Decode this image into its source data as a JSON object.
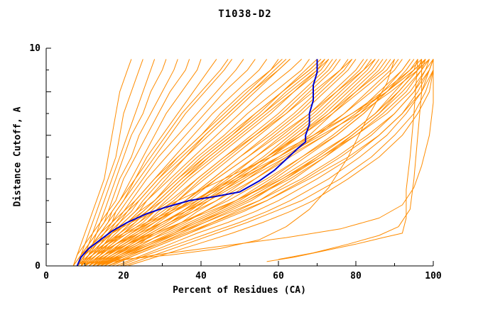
{
  "chart_data": {
    "type": "line",
    "title": "T1038-D2",
    "xlabel": "Percent of Residues (CA)",
    "ylabel": "Distance Cutoff, A",
    "xlim": [
      0,
      100
    ],
    "ylim": [
      0,
      10
    ],
    "grid": false,
    "legend": "none",
    "colors": {
      "background": "#ffffff",
      "axis": "#000000",
      "text": "#000000",
      "model_line": "#ff8c00",
      "highlight_line": "#0000cd"
    },
    "x_major_ticks": [
      0,
      20,
      40,
      60,
      80,
      100
    ],
    "x_tick_labels": [
      "0",
      "20",
      "40",
      "60",
      "80",
      "100"
    ],
    "x_minor_ticks": [
      10,
      30,
      50,
      70,
      90
    ],
    "y_major_ticks": [
      0,
      2,
      4,
      6,
      8,
      10
    ],
    "y_minor_ticks": [
      1,
      3,
      5,
      7,
      9
    ],
    "y_labeled_ticks": [
      {
        "value": 0,
        "label": "0"
      },
      {
        "value": 10,
        "label": "10"
      }
    ],
    "y_levels": [
      0,
      0.5,
      1,
      1.5,
      2,
      2.5,
      3,
      4,
      5,
      6,
      7,
      8,
      9,
      9.5
    ],
    "model_series_x": [
      [
        7,
        8,
        9,
        10,
        11,
        12,
        13,
        15,
        16,
        17,
        18,
        19,
        21,
        22
      ],
      [
        7,
        8,
        10,
        11,
        12,
        13,
        14,
        16,
        18,
        19,
        20,
        22,
        24,
        25
      ],
      [
        8,
        9,
        10,
        12,
        13,
        14,
        15,
        17,
        19,
        21,
        23,
        25,
        27,
        28
      ],
      [
        8,
        9,
        11,
        12,
        14,
        15,
        16,
        18,
        20,
        22,
        25,
        27,
        30,
        31
      ],
      [
        8,
        10,
        11,
        13,
        14,
        16,
        17,
        19,
        22,
        24,
        27,
        30,
        33,
        34
      ],
      [
        9,
        10,
        12,
        13,
        15,
        16,
        18,
        20,
        23,
        26,
        29,
        32,
        36,
        37
      ],
      [
        9,
        11,
        12,
        14,
        16,
        17,
        19,
        22,
        25,
        28,
        31,
        35,
        39,
        40
      ],
      [
        9,
        11,
        13,
        15,
        17,
        18,
        20,
        23,
        26,
        30,
        34,
        38,
        42,
        44
      ],
      [
        8,
        10,
        12,
        14,
        16,
        18,
        20,
        24,
        28,
        32,
        36,
        41,
        46,
        48
      ],
      [
        8,
        10,
        13,
        15,
        17,
        19,
        21,
        25,
        29,
        34,
        39,
        44,
        49,
        51
      ],
      [
        9,
        11,
        13,
        16,
        18,
        20,
        22,
        26,
        31,
        36,
        41,
        46,
        52,
        54
      ],
      [
        9,
        11,
        14,
        16,
        19,
        21,
        23,
        28,
        33,
        38,
        43,
        49,
        55,
        57
      ],
      [
        9,
        12,
        14,
        17,
        19,
        22,
        24,
        29,
        34,
        40,
        45,
        51,
        58,
        60
      ],
      [
        10,
        12,
        15,
        17,
        20,
        23,
        25,
        30,
        36,
        42,
        48,
        54,
        60,
        63
      ],
      [
        10,
        13,
        15,
        18,
        21,
        24,
        26,
        32,
        38,
        44,
        50,
        56,
        63,
        66
      ],
      [
        10,
        13,
        16,
        19,
        22,
        25,
        28,
        33,
        39,
        46,
        52,
        59,
        66,
        68
      ],
      [
        11,
        14,
        16,
        20,
        23,
        26,
        29,
        35,
        41,
        48,
        55,
        61,
        68,
        71
      ],
      [
        11,
        14,
        17,
        20,
        24,
        27,
        30,
        36,
        43,
        50,
        57,
        64,
        71,
        73
      ],
      [
        9,
        12,
        15,
        18,
        21,
        25,
        28,
        34,
        41,
        48,
        54,
        61,
        67,
        70
      ],
      [
        10,
        13,
        17,
        21,
        25,
        28,
        31,
        37,
        44,
        51,
        58,
        64,
        70,
        72
      ],
      [
        12,
        15,
        18,
        22,
        26,
        29,
        33,
        39,
        46,
        53,
        60,
        66,
        72,
        74
      ],
      [
        12,
        16,
        19,
        23,
        27,
        31,
        34,
        41,
        48,
        55,
        62,
        68,
        74,
        76
      ],
      [
        13,
        16,
        20,
        24,
        28,
        32,
        36,
        43,
        50,
        57,
        64,
        70,
        76,
        78
      ],
      [
        13,
        17,
        21,
        25,
        29,
        33,
        37,
        44,
        52,
        59,
        66,
        72,
        78,
        80
      ],
      [
        14,
        18,
        22,
        26,
        31,
        35,
        39,
        46,
        54,
        61,
        68,
        74,
        80,
        82
      ],
      [
        14,
        18,
        23,
        27,
        32,
        36,
        40,
        48,
        56,
        63,
        70,
        76,
        82,
        84
      ],
      [
        15,
        19,
        24,
        28,
        33,
        38,
        42,
        50,
        58,
        65,
        72,
        78,
        84,
        86
      ],
      [
        15,
        20,
        25,
        30,
        35,
        39,
        44,
        52,
        60,
        68,
        74,
        80,
        86,
        88
      ],
      [
        10,
        14,
        18,
        23,
        28,
        33,
        38,
        48,
        57,
        66,
        74,
        81,
        88,
        90
      ],
      [
        11,
        15,
        20,
        25,
        30,
        36,
        41,
        51,
        60,
        69,
        77,
        84,
        90,
        92
      ],
      [
        11,
        16,
        21,
        27,
        32,
        38,
        44,
        54,
        63,
        72,
        80,
        86,
        92,
        94
      ],
      [
        12,
        17,
        23,
        29,
        35,
        41,
        47,
        57,
        66,
        75,
        82,
        88,
        94,
        96
      ],
      [
        12,
        18,
        24,
        31,
        37,
        43,
        49,
        60,
        69,
        78,
        85,
        91,
        96,
        97
      ],
      [
        13,
        19,
        26,
        33,
        39,
        46,
        52,
        63,
        72,
        80,
        87,
        93,
        97,
        98
      ],
      [
        13,
        20,
        27,
        34,
        41,
        48,
        55,
        66,
        75,
        83,
        90,
        95,
        98,
        99
      ],
      [
        14,
        21,
        29,
        36,
        43,
        50,
        57,
        68,
        78,
        86,
        92,
        97,
        99,
        100
      ],
      [
        9,
        13,
        18,
        24,
        30,
        36,
        42,
        52,
        62,
        72,
        80,
        88,
        95,
        98
      ],
      [
        9,
        12,
        16,
        21,
        27,
        33,
        39,
        50,
        61,
        71,
        81,
        89,
        96,
        99
      ],
      [
        10,
        15,
        21,
        28,
        35,
        42,
        49,
        61,
        71,
        80,
        88,
        94,
        98,
        100
      ],
      [
        8,
        11,
        15,
        20,
        26,
        32,
        38,
        49,
        60,
        70,
        79,
        87,
        94,
        97
      ],
      [
        16,
        22,
        28,
        34,
        40,
        46,
        52,
        62,
        71,
        79,
        86,
        92,
        97,
        99
      ],
      [
        17,
        23,
        30,
        37,
        44,
        51,
        57,
        67,
        76,
        84,
        90,
        95,
        99,
        100
      ],
      [
        18,
        25,
        32,
        39,
        47,
        54,
        60,
        70,
        79,
        86,
        92,
        96,
        99,
        100
      ],
      [
        8,
        10,
        13,
        17,
        22,
        28,
        34,
        46,
        58,
        69,
        79,
        88,
        95,
        98
      ],
      [
        19,
        26,
        34,
        42,
        50,
        57,
        63,
        73,
        81,
        88,
        93,
        97,
        100,
        100
      ],
      [
        20,
        28,
        36,
        44,
        52,
        59,
        66,
        76,
        84,
        90,
        95,
        98,
        100,
        100
      ],
      [
        21,
        30,
        39,
        48,
        56,
        63,
        69,
        78,
        86,
        92,
        96,
        99,
        100,
        100
      ],
      [
        15,
        21,
        27,
        33,
        39,
        45,
        51,
        61,
        70,
        78,
        85,
        91,
        96,
        98
      ],
      [
        7,
        9,
        11,
        13,
        15,
        17,
        19,
        23,
        27,
        31,
        35,
        40,
        45,
        47
      ],
      [
        8,
        11,
        14,
        17,
        20,
        23,
        26,
        31,
        36,
        41,
        47,
        53,
        59,
        62
      ],
      [
        9,
        12,
        16,
        19,
        23,
        26,
        30,
        36,
        42,
        49,
        56,
        62,
        69,
        72
      ],
      [
        10,
        14,
        18,
        22,
        26,
        30,
        34,
        40,
        47,
        54,
        61,
        67,
        73,
        75
      ],
      [
        11,
        15,
        19,
        24,
        28,
        32,
        36,
        43,
        50,
        58,
        65,
        71,
        77,
        79
      ],
      [
        12,
        16,
        21,
        26,
        30,
        35,
        39,
        47,
        54,
        62,
        69,
        75,
        81,
        83
      ],
      [
        13,
        18,
        23,
        28,
        33,
        38,
        42,
        50,
        58,
        66,
        73,
        79,
        85,
        87
      ],
      [
        14,
        19,
        25,
        30,
        36,
        41,
        46,
        54,
        62,
        70,
        77,
        83,
        89,
        91
      ],
      [
        15,
        21,
        27,
        33,
        38,
        44,
        49,
        58,
        66,
        74,
        81,
        87,
        92,
        94
      ],
      [
        16,
        22,
        29,
        35,
        41,
        47,
        53,
        62,
        70,
        78,
        85,
        90,
        95,
        96
      ],
      [
        8,
        10,
        12,
        15,
        18,
        21,
        24,
        29,
        35,
        41,
        47,
        53,
        60,
        63
      ],
      [
        9,
        11,
        14,
        17,
        21,
        24,
        28,
        34,
        40,
        47,
        54,
        61,
        68,
        71
      ],
      [
        10,
        13,
        16,
        20,
        24,
        28,
        32,
        39,
        46,
        54,
        62,
        69,
        76,
        79
      ],
      [
        11,
        14,
        18,
        22,
        27,
        31,
        36,
        44,
        52,
        60,
        68,
        75,
        82,
        85
      ],
      [
        12,
        15,
        20,
        25,
        30,
        35,
        40,
        48,
        57,
        65,
        73,
        80,
        87,
        89
      ],
      [
        7,
        9,
        12,
        14,
        17,
        20,
        23,
        28,
        34,
        40,
        46,
        52,
        58,
        61
      ],
      [
        8,
        12,
        15,
        19,
        22,
        26,
        29,
        35,
        42,
        49,
        56,
        63,
        70,
        73
      ],
      [
        13,
        17,
        22,
        27,
        32,
        37,
        41,
        49,
        57,
        64,
        71,
        77,
        83,
        85
      ],
      [
        14,
        20,
        26,
        32,
        38,
        44,
        50,
        59,
        67,
        75,
        82,
        88,
        93,
        95
      ],
      [
        16,
        23,
        30,
        37,
        43,
        49,
        55,
        64,
        72,
        79,
        86,
        91,
        96,
        97
      ]
    ],
    "extra_model_series": [
      [
        [
          57,
          0.2
        ],
        [
          64,
          0.4
        ],
        [
          72,
          0.7
        ],
        [
          80,
          1.0
        ],
        [
          87,
          1.3
        ],
        [
          92,
          1.5
        ],
        [
          93,
          2.2
        ],
        [
          93,
          3.5
        ],
        [
          94,
          5.0
        ],
        [
          95,
          7.0
        ],
        [
          96,
          9.5
        ]
      ],
      [
        [
          60,
          0.3
        ],
        [
          69,
          0.6
        ],
        [
          78,
          1.0
        ],
        [
          86,
          1.4
        ],
        [
          91,
          1.8
        ],
        [
          94,
          2.6
        ],
        [
          95,
          4.0
        ],
        [
          96,
          6.0
        ],
        [
          97,
          8.0
        ],
        [
          97,
          9.5
        ]
      ],
      [
        [
          14,
          0.1
        ],
        [
          28,
          0.5
        ],
        [
          45,
          0.9
        ],
        [
          62,
          1.3
        ],
        [
          76,
          1.7
        ],
        [
          86,
          2.2
        ],
        [
          92,
          2.8
        ],
        [
          95,
          3.6
        ],
        [
          97,
          4.6
        ],
        [
          99,
          6.0
        ],
        [
          100,
          7.5
        ],
        [
          100,
          9.5
        ]
      ],
      [
        [
          9,
          0.1
        ],
        [
          20,
          0.3
        ],
        [
          32,
          0.5
        ],
        [
          45,
          0.8
        ],
        [
          55,
          1.2
        ],
        [
          62,
          1.8
        ],
        [
          68,
          2.6
        ],
        [
          73,
          3.6
        ],
        [
          78,
          5.0
        ],
        [
          83,
          6.8
        ],
        [
          88,
          8.4
        ],
        [
          90,
          9.5
        ]
      ]
    ],
    "highlight_series": [
      [
        8,
        0
      ],
      [
        9,
        0.4
      ],
      [
        11,
        0.8
      ],
      [
        14,
        1.2
      ],
      [
        17,
        1.6
      ],
      [
        21,
        2.0
      ],
      [
        26,
        2.4
      ],
      [
        31,
        2.7
      ],
      [
        37,
        3.0
      ],
      [
        44,
        3.2
      ],
      [
        50,
        3.4
      ],
      [
        55,
        3.9
      ],
      [
        59,
        4.4
      ],
      [
        62,
        4.9
      ],
      [
        65,
        5.4
      ],
      [
        67,
        5.7
      ],
      [
        67,
        6.0
      ],
      [
        68,
        6.5
      ],
      [
        68,
        7.0
      ],
      [
        69,
        7.6
      ],
      [
        69,
        8.3
      ],
      [
        70,
        8.9
      ],
      [
        70,
        9.5
      ]
    ]
  }
}
